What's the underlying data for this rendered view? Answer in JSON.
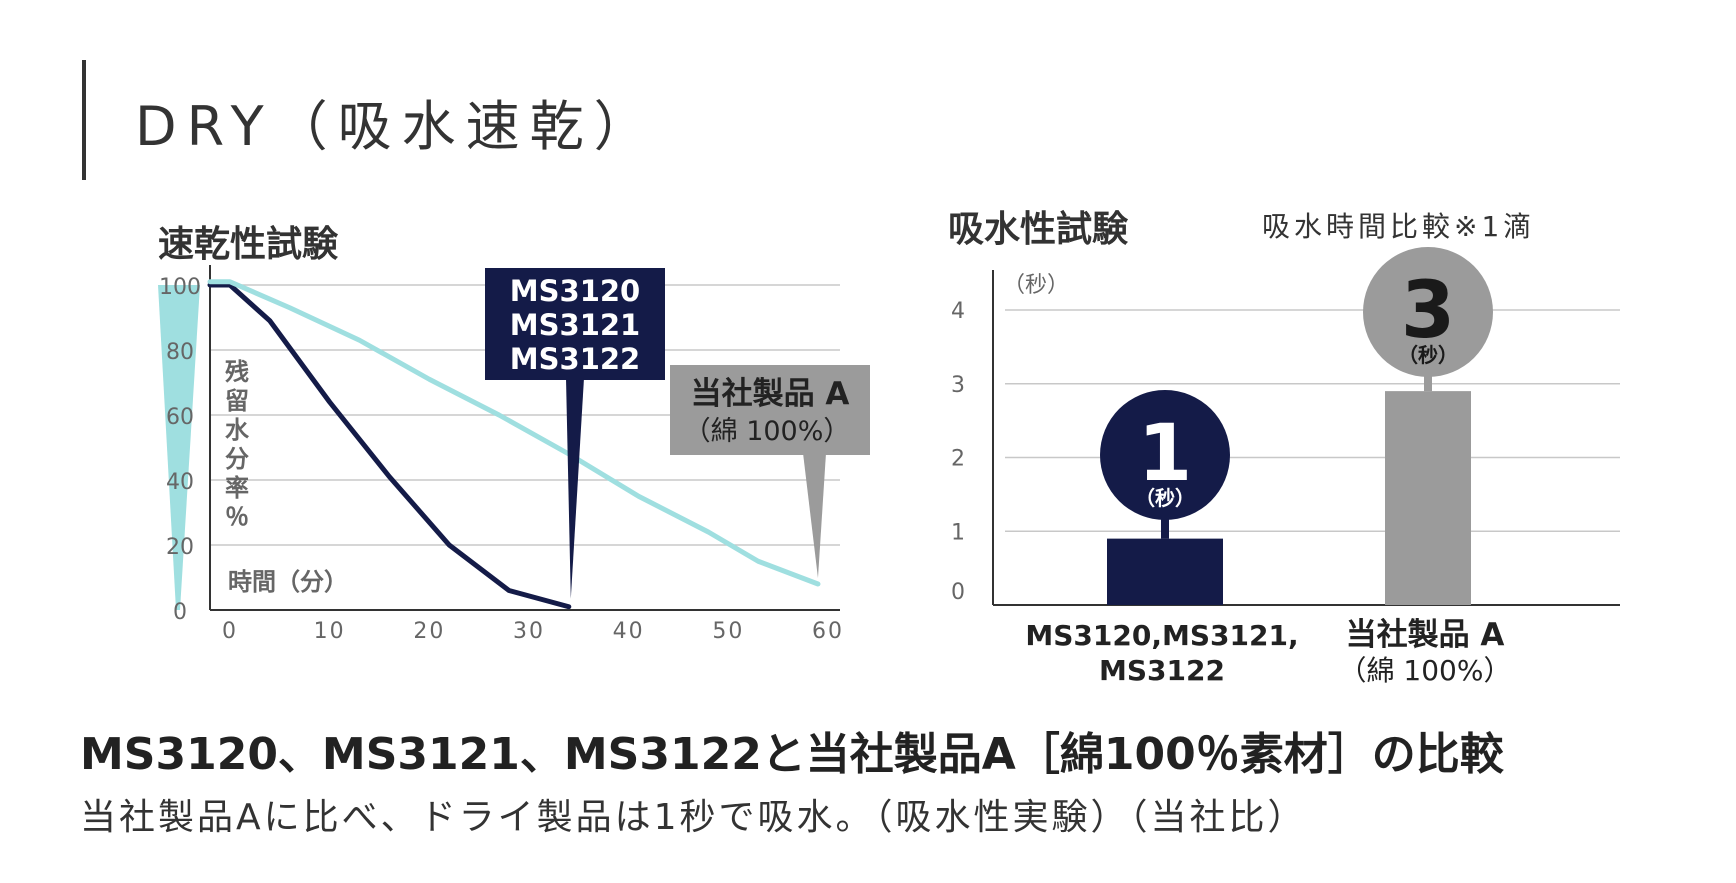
{
  "page_title": "DRY（吸水速乾）",
  "footer": {
    "main": "MS3120、MS3121、MS3122と当社製品A［綿100％素材］の比較",
    "note": "当社製品Aに比べ、ドライ製品は1秒で吸水。（吸水性実験）（当社比）"
  },
  "colors": {
    "navy": "#141b48",
    "cyan": "#9fdfe0",
    "gray": "#9b9b9b",
    "grid": "#c8c8c8",
    "text": "#333333"
  },
  "chart_data": [
    {
      "type": "line",
      "title": "速乾性試験",
      "ylabel": "残留水分率％",
      "xlabel": "時間（分）",
      "xlim": [
        0,
        60
      ],
      "ylim": [
        0,
        100
      ],
      "xticks": [
        "0",
        "10",
        "20",
        "30",
        "40",
        "50",
        "60"
      ],
      "yticks": [
        "0",
        "20",
        "40",
        "60",
        "80",
        "100"
      ],
      "grid": true,
      "series": [
        {
          "name": "MS3120\nMS3121\nMS3122",
          "lines": [
            "MS3120",
            "MS3121",
            "MS3122"
          ],
          "x": [
            0,
            2,
            6,
            12,
            18,
            24,
            30,
            36
          ],
          "y": [
            100,
            100,
            89,
            64,
            41,
            20,
            6,
            1
          ]
        },
        {
          "name": "当社製品 A（綿 100%）",
          "lines": [
            "当社製品 A",
            "（綿 100%）"
          ],
          "x": [
            0,
            2,
            8,
            15,
            22,
            29,
            36,
            43,
            50,
            55,
            61
          ],
          "y": [
            101,
            101,
            93,
            83,
            71,
            60,
            48,
            35,
            24,
            15,
            8
          ]
        }
      ]
    },
    {
      "type": "bar",
      "title": "吸水性試験",
      "subtitle": "吸水時間比較※1滴",
      "unit": "（秒）",
      "yticks": [
        "0",
        "1",
        "2",
        "3",
        "4"
      ],
      "ylim": [
        0,
        4
      ],
      "grid": true,
      "categories": [
        {
          "lines": [
            "MS3120,MS3121,",
            "MS3122"
          ]
        },
        {
          "lines": [
            "当社製品 A",
            "（綿 100%）"
          ]
        }
      ],
      "values": [
        1,
        3
      ],
      "bar_heights": [
        0.9,
        2.9
      ],
      "value_labels": [
        "1",
        "3"
      ],
      "value_unit": "（秒）"
    }
  ]
}
